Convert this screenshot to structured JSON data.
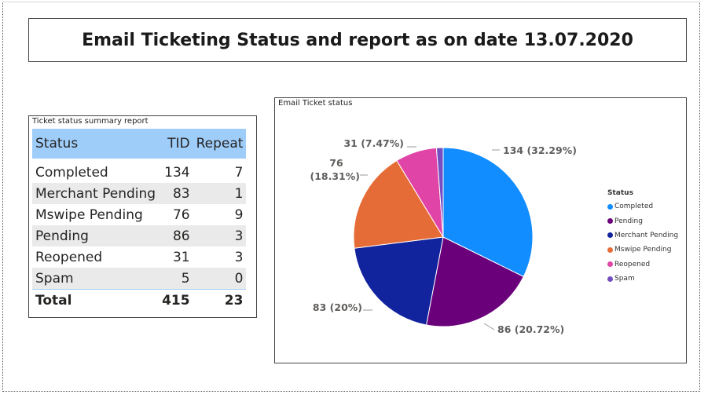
{
  "header": {
    "title": "Email Ticketing Status and report as on date 13.07.2020"
  },
  "table": {
    "title": "Ticket status summary report",
    "columns": [
      "Status",
      "TID",
      "Repeat"
    ],
    "rows": [
      {
        "status": "Completed",
        "tid": "134",
        "repeat": "7"
      },
      {
        "status": "Merchant Pending",
        "tid": "83",
        "repeat": "1"
      },
      {
        "status": "Mswipe Pending",
        "tid": "76",
        "repeat": "9"
      },
      {
        "status": "Pending",
        "tid": "86",
        "repeat": "3"
      },
      {
        "status": "Reopened",
        "tid": "31",
        "repeat": "3"
      },
      {
        "status": "Spam",
        "tid": "5",
        "repeat": "0"
      }
    ],
    "total": {
      "label": "Total",
      "tid": "415",
      "repeat": "23"
    }
  },
  "chart_data": {
    "type": "pie",
    "title": "Email Ticket status",
    "legend_title": "Status",
    "legend_placement": "right",
    "slices": [
      {
        "name": "Completed",
        "value": 134,
        "color": "#118dff",
        "label": "134 (32.29%)"
      },
      {
        "name": "Pending",
        "value": 86,
        "color": "#6b007b",
        "label": "86 (20.72%)"
      },
      {
        "name": "Merchant Pending",
        "value": 83,
        "color": "#12239e",
        "label": "83 (20%)"
      },
      {
        "name": "Mswipe Pending",
        "value": 76,
        "color": "#e66c37",
        "label": "76 (18.31%)"
      },
      {
        "name": "Reopened",
        "value": 31,
        "color": "#e044a7",
        "label": "31 (7.47%)"
      },
      {
        "name": "Spam",
        "value": 5,
        "color": "#744ec2",
        "label": ""
      }
    ]
  }
}
